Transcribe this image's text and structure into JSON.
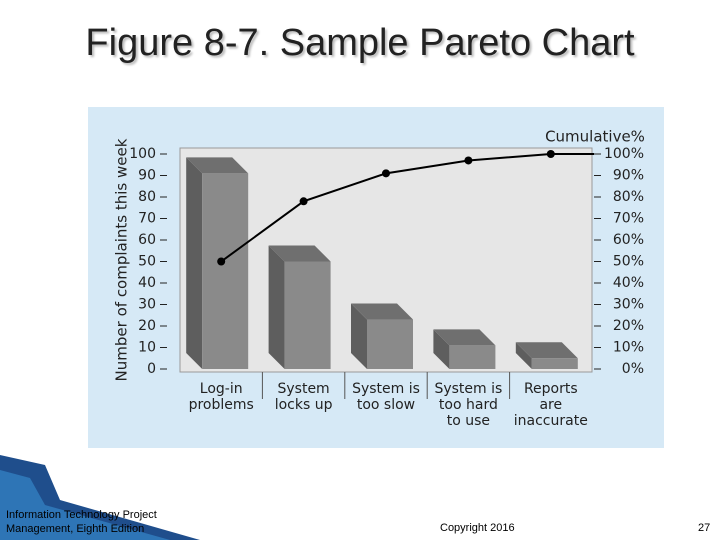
{
  "title": "Figure 8-7. Sample Pareto Chart",
  "chart_data": {
    "type": "pareto",
    "y_label": "Number of complaints this week",
    "y2_label": "Cumulative%",
    "categories": [
      "Log-in\nproblems",
      "System\nlocks up",
      "System is\ntoo slow",
      "System is\ntoo hard\nto use",
      "Reports\nare\ninaccurate"
    ],
    "series": [
      {
        "type": "bar",
        "color": "#8a8a8a",
        "values": [
          91,
          50,
          23,
          11,
          5
        ]
      },
      {
        "type": "line",
        "axis": "y2",
        "color": "#000000",
        "values": [
          50,
          78,
          91,
          97,
          100
        ]
      }
    ],
    "ylim": [
      0,
      100
    ],
    "yticks": [
      0,
      10,
      20,
      30,
      40,
      50,
      60,
      70,
      80,
      90,
      100
    ],
    "y2lim": [
      0,
      100
    ],
    "y2ticks": [
      {
        "value": 0,
        "label": "0%"
      },
      {
        "value": 10,
        "label": "10%"
      },
      {
        "value": 20,
        "label": "20%"
      },
      {
        "value": 30,
        "label": "30%"
      },
      {
        "value": 40,
        "label": "40%"
      },
      {
        "value": 50,
        "label": "50%"
      },
      {
        "value": 60,
        "label": "60%"
      },
      {
        "value": 70,
        "label": "70%"
      },
      {
        "value": 80,
        "label": "80%"
      },
      {
        "value": 90,
        "label": "90%"
      },
      {
        "value": 100,
        "label": "100%"
      }
    ]
  },
  "footer": {
    "source": "Information Technology Project Management, Eighth Edition",
    "copyright": "Copyright 2016",
    "page": "27"
  }
}
